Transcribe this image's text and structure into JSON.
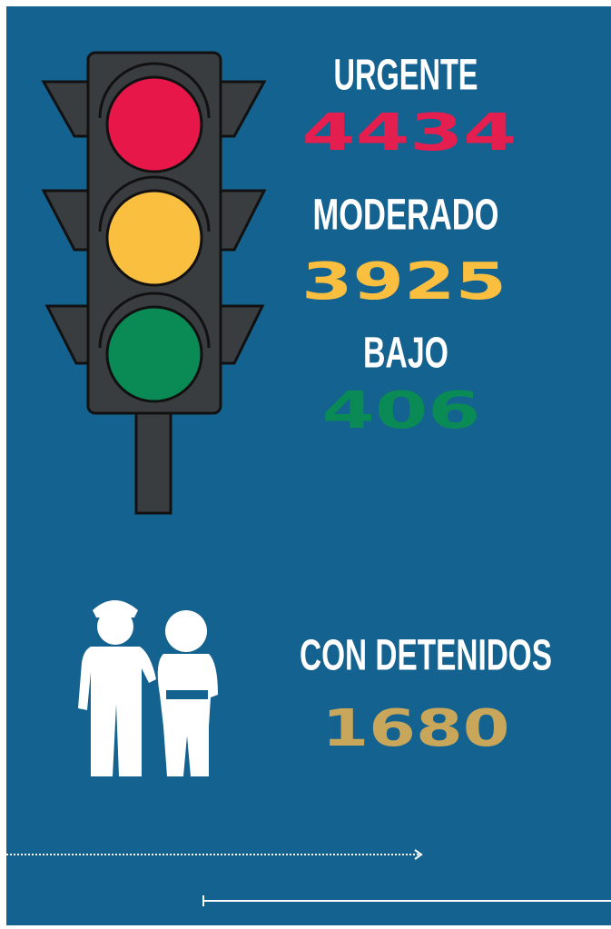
{
  "levels": [
    {
      "label": "URGENTE",
      "value": 4434
    },
    {
      "label": "MODERADO",
      "value": 3925
    },
    {
      "label": "BAJO",
      "value": 406
    }
  ],
  "detained": {
    "label": "CON DETENIDOS",
    "value": 1680
  }
}
